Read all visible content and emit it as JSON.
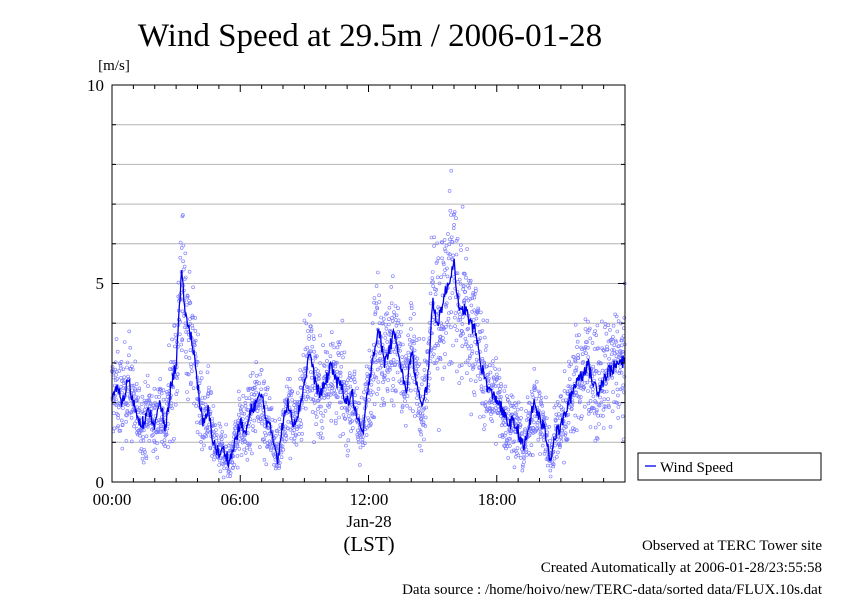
{
  "chart_data": {
    "type": "scatter",
    "title": "Wind Speed at 29.5m / 2006-01-28",
    "ylabel": "[m/s]",
    "ylim": [
      0,
      10
    ],
    "y_ticks": [
      "0",
      "5",
      "10"
    ],
    "xlim_hours": [
      0,
      24
    ],
    "x_ticks": [
      "00:00",
      "06:00",
      "12:00",
      "18:00"
    ],
    "x_date_label": "Jan-28",
    "x_unit_label": "(LST)",
    "grid": true,
    "legend_position": "right-bottom",
    "series": [
      {
        "name": "Wind Speed",
        "color": "#0000ee",
        "scatter_color": "#7777ff",
        "hours": [
          0.0,
          0.25,
          0.5,
          0.75,
          1.0,
          1.25,
          1.5,
          1.75,
          2.0,
          2.25,
          2.5,
          2.75,
          3.0,
          3.25,
          3.5,
          3.75,
          4.0,
          4.25,
          4.5,
          4.75,
          5.0,
          5.25,
          5.5,
          5.75,
          6.0,
          6.25,
          6.5,
          6.75,
          7.0,
          7.25,
          7.5,
          7.75,
          8.0,
          8.25,
          8.5,
          8.75,
          9.0,
          9.25,
          9.5,
          9.75,
          10.0,
          10.25,
          10.5,
          10.75,
          11.0,
          11.25,
          11.5,
          11.75,
          12.0,
          12.25,
          12.5,
          12.75,
          13.0,
          13.25,
          13.5,
          13.75,
          14.0,
          14.25,
          14.5,
          14.75,
          15.0,
          15.25,
          15.5,
          15.75,
          16.0,
          16.25,
          16.5,
          16.75,
          17.0,
          17.25,
          17.5,
          17.75,
          18.0,
          18.25,
          18.5,
          18.75,
          19.0,
          19.25,
          19.5,
          19.75,
          20.0,
          20.25,
          20.5,
          20.75,
          21.0,
          21.25,
          21.5,
          21.75,
          22.0,
          22.25,
          22.5,
          22.75,
          23.0,
          23.25,
          23.5,
          23.75,
          24.0
        ],
        "values": [
          2.2,
          2.3,
          2.0,
          2.6,
          2.0,
          1.6,
          1.5,
          1.8,
          1.4,
          2.0,
          1.3,
          2.4,
          3.0,
          5.2,
          4.0,
          3.6,
          2.5,
          1.4,
          1.8,
          1.0,
          0.7,
          0.8,
          0.5,
          1.0,
          1.5,
          1.2,
          1.8,
          2.0,
          2.2,
          1.5,
          1.2,
          0.6,
          1.5,
          2.0,
          1.5,
          1.8,
          2.5,
          3.3,
          2.5,
          2.2,
          2.5,
          3.0,
          2.5,
          2.4,
          2.0,
          2.2,
          1.5,
          1.2,
          2.5,
          3.3,
          3.8,
          3.0,
          3.4,
          3.8,
          3.0,
          2.2,
          3.3,
          2.5,
          1.8,
          2.5,
          4.5,
          4.0,
          4.6,
          5.0,
          5.6,
          4.2,
          4.4,
          4.0,
          3.8,
          3.0,
          2.5,
          2.2,
          2.1,
          1.8,
          1.5,
          1.5,
          1.3,
          0.8,
          1.4,
          2.0,
          1.6,
          1.3,
          0.6,
          1.2,
          1.4,
          1.8,
          2.2,
          2.6,
          2.7,
          3.0,
          2.5,
          2.3,
          2.6,
          2.8,
          2.9,
          3.0,
          3.0
        ]
      }
    ]
  },
  "annotations": {
    "site": "Observed at TERC Tower site",
    "created": "Created Automatically at 2006-01-28/23:55:58",
    "source": "Data source : /home/hoivo/new/TERC-data/sorted  data/FLUX.10s.dat"
  }
}
